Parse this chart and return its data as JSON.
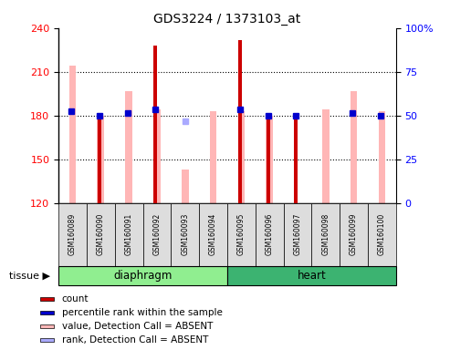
{
  "title": "GDS3224 / 1373103_at",
  "samples": [
    "GSM160089",
    "GSM160090",
    "GSM160091",
    "GSM160092",
    "GSM160093",
    "GSM160094",
    "GSM160095",
    "GSM160096",
    "GSM160097",
    "GSM160098",
    "GSM160099",
    "GSM160100"
  ],
  "groups": [
    "diaphragm",
    "diaphragm",
    "diaphragm",
    "diaphragm",
    "diaphragm",
    "diaphragm",
    "heart",
    "heart",
    "heart",
    "heart",
    "heart",
    "heart"
  ],
  "group_labels": [
    "diaphragm",
    "heart"
  ],
  "group_colors_map": {
    "diaphragm": "#90ee90",
    "heart": "#3cb371"
  },
  "ylim_left": [
    120,
    240
  ],
  "ylim_right": [
    0,
    100
  ],
  "yticks_left": [
    120,
    150,
    180,
    210,
    240
  ],
  "yticks_right": [
    0,
    25,
    50,
    75,
    100
  ],
  "yticklabels_right": [
    "0",
    "25",
    "50",
    "75",
    "100%"
  ],
  "count_values": [
    120,
    180,
    120,
    228,
    120,
    120,
    232,
    180,
    180,
    120,
    120,
    120
  ],
  "count_color": "#cc0000",
  "value_absent_values": [
    214,
    180,
    197,
    184,
    143,
    183,
    183,
    180,
    120,
    184,
    197,
    183
  ],
  "value_absent_color": "#ffb6b6",
  "rank_present_values": [
    183,
    180,
    182,
    184,
    120,
    120,
    184,
    180,
    180,
    120,
    182,
    180
  ],
  "rank_present_color": "#0000cc",
  "rank_absent_values": [
    120,
    120,
    120,
    120,
    176,
    120,
    120,
    120,
    120,
    120,
    120,
    120
  ],
  "rank_absent_color": "#aaaaff",
  "legend_items": [
    {
      "label": "count",
      "color": "#cc0000"
    },
    {
      "label": "percentile rank within the sample",
      "color": "#0000cc"
    },
    {
      "label": "value, Detection Call = ABSENT",
      "color": "#ffb6b6"
    },
    {
      "label": "rank, Detection Call = ABSENT",
      "color": "#aaaaff"
    }
  ],
  "bg_color": "#ffffff",
  "sample_box_color": "#dddddd",
  "grid_dotted_vals": [
    150,
    180,
    210
  ]
}
